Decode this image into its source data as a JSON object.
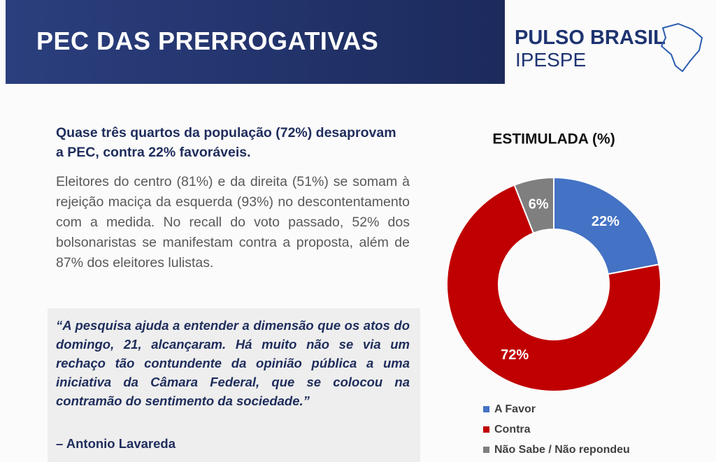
{
  "header": {
    "title": "PEC DAS PRERROGATIVAS"
  },
  "logo": {
    "name": "PULSO BRASIL",
    "subtitle": "IPESPE"
  },
  "text": {
    "headline": "Quase três quartos  da população (72%) desaprovam a PEC, contra 22% favoráveis.",
    "body": "Eleitores do centro (81%) e da direita (51%) se somam à rejeição maciça da esquerda (93%) no descontentamento com a medida. No recall do voto passado, 52% dos bolsonaristas se manifestam contra a proposta, além de 87% dos eleitores lulistas."
  },
  "quote": {
    "text": "“A pesquisa ajuda a entender a dimensão que os atos do domingo, 21,  alcançaram. Há muito não se via um rechaço tão contundente da opinião pública a uma iniciativa da Câmara Federal, que se colocou na contramão do sentimento da sociedade.”",
    "author": "– Antonio Lavareda"
  },
  "chart_data": {
    "type": "donut",
    "title": "ESTIMULADA (%)",
    "categories": [
      "A Favor",
      "Contra",
      "Não Sabe / Não repondeu"
    ],
    "values": [
      22,
      72,
      6
    ],
    "value_labels": [
      "22%",
      "72%",
      "6%"
    ],
    "colors": [
      "#4472c4",
      "#c00000",
      "#7f7f7f"
    ]
  }
}
